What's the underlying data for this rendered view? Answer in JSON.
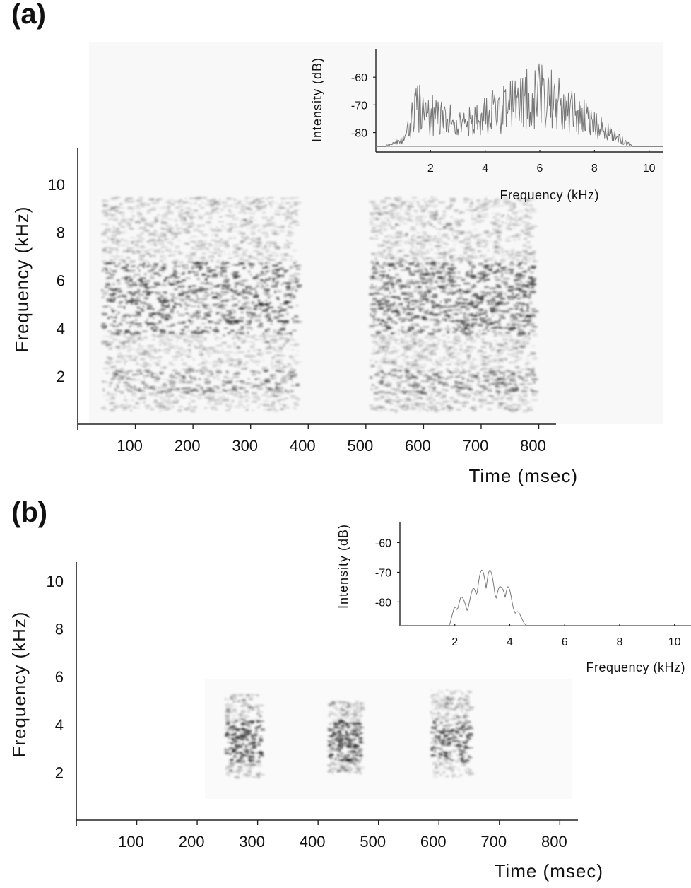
{
  "panels": {
    "a": {
      "label": "(a)"
    },
    "b": {
      "label": "(b)"
    }
  },
  "chart_data": [
    {
      "id": "a-spectrogram",
      "type": "heatmap",
      "xlabel": "Time (msec)",
      "ylabel": "Frequency (kHz)",
      "xlim": [
        0,
        830
      ],
      "ylim": [
        0,
        11.5
      ],
      "xticks": [
        100,
        200,
        300,
        400,
        500,
        600,
        700,
        800
      ],
      "yticks": [
        2,
        4,
        6,
        8,
        10
      ],
      "bursts": [
        {
          "t_start": 40,
          "t_end": 380,
          "f_min": 0.6,
          "f_max": 9.5,
          "peak_f_min": 3.8,
          "peak_f_max": 6.8
        },
        {
          "t_start": 505,
          "t_end": 790,
          "f_min": 0.6,
          "f_max": 9.5,
          "peak_f_min": 3.8,
          "peak_f_max": 6.8
        }
      ]
    },
    {
      "id": "a-spectrum-inset",
      "type": "line",
      "xlabel": "Frequency (kHz)",
      "ylabel": "Intensity (dB)",
      "xlim": [
        0,
        10.5
      ],
      "ylim": [
        -87,
        -50
      ],
      "xticks": [
        2,
        4,
        6,
        8,
        10
      ],
      "yticks": [
        -60,
        -70,
        -80
      ],
      "envelope": {
        "x": [
          0.2,
          0.5,
          1.0,
          1.5,
          2.0,
          2.5,
          3.0,
          3.5,
          4.0,
          4.5,
          5.0,
          5.5,
          6.0,
          6.5,
          7.0,
          7.5,
          8.0,
          8.5,
          9.0,
          9.3,
          9.5,
          10.4
        ],
        "y": [
          -85,
          -84,
          -81,
          -62,
          -66,
          -69,
          -71,
          -70,
          -67,
          -62,
          -60,
          -57,
          -55,
          -57,
          -62,
          -67,
          -71,
          -76,
          -81,
          -84,
          -85,
          -85
        ]
      }
    },
    {
      "id": "b-spectrogram",
      "type": "heatmap",
      "xlabel": "Time (msec)",
      "ylabel": "Frequency (kHz)",
      "xlim": [
        0,
        830
      ],
      "ylim": [
        0,
        10.8
      ],
      "xticks": [
        100,
        200,
        300,
        400,
        500,
        600,
        700,
        800
      ],
      "yticks": [
        2,
        4,
        6,
        8,
        10
      ],
      "bursts": [
        {
          "t_start": 245,
          "t_end": 305,
          "f_min": 1.8,
          "f_max": 5.3,
          "peak_f_min": 2.5,
          "peak_f_max": 4.2
        },
        {
          "t_start": 415,
          "t_end": 470,
          "f_min": 2.0,
          "f_max": 5.0,
          "peak_f_min": 2.5,
          "peak_f_max": 4.2
        },
        {
          "t_start": 585,
          "t_end": 650,
          "f_min": 1.8,
          "f_max": 5.5,
          "peak_f_min": 2.5,
          "peak_f_max": 4.2
        }
      ]
    },
    {
      "id": "b-spectrum-inset",
      "type": "line",
      "xlabel": "Frequency (kHz)",
      "ylabel": "Intensity (dB)",
      "xlim": [
        0,
        10.6
      ],
      "ylim": [
        -88,
        -53
      ],
      "xticks": [
        2,
        4,
        6,
        8,
        10
      ],
      "yticks": [
        -60,
        -70,
        -80
      ],
      "envelope": {
        "x": [
          0.0,
          1.8,
          2.0,
          2.2,
          2.5,
          2.7,
          2.9,
          3.2,
          3.5,
          3.7,
          3.9,
          4.1,
          4.3,
          4.6,
          4.8,
          10.6
        ],
        "y": [
          -88,
          -88,
          -81,
          -78,
          -80,
          -74,
          -70,
          -67,
          -74,
          -75,
          -72,
          -80,
          -83,
          -88,
          -88,
          -88
        ]
      }
    }
  ]
}
